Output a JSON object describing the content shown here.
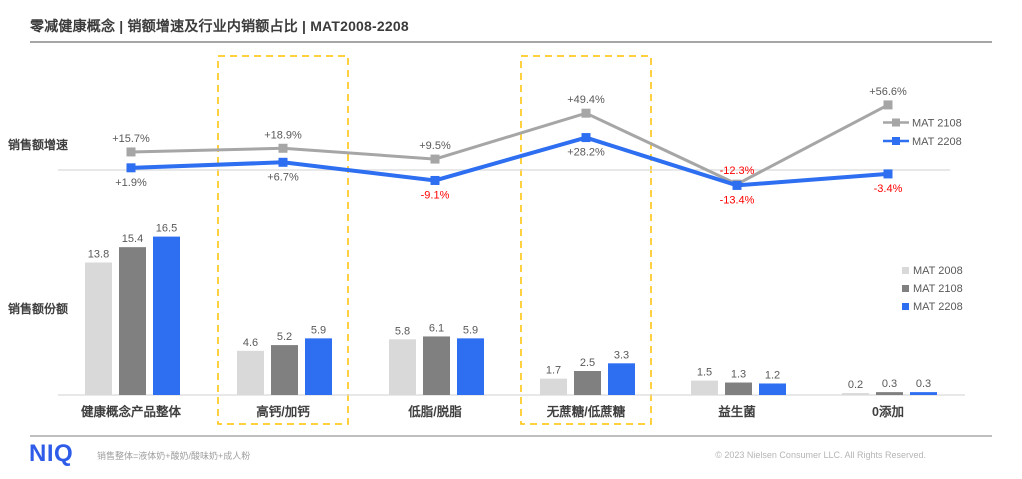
{
  "title": "零减健康概念 | 销额增速及行业内销额占比 | MAT2008-2208",
  "sections": {
    "growth_label": "销售额增速",
    "share_label": "销售额份额"
  },
  "chart_data": [
    {
      "type": "line",
      "title": "销售额增速",
      "unit": "%",
      "categories": [
        "健康概念产品整体",
        "高钙/加钙",
        "低脂/脱脂",
        "无蔗糖/低蔗糖",
        "益生菌",
        "0添加"
      ],
      "series": [
        {
          "name": "MAT 2108",
          "color": "#a6a6a6",
          "values": [
            15.7,
            18.9,
            9.5,
            49.4,
            -12.3,
            56.6
          ]
        },
        {
          "name": "MAT 2208",
          "color": "#2e6ef0",
          "values": [
            1.9,
            6.7,
            -9.1,
            28.2,
            -13.4,
            -3.4
          ]
        }
      ],
      "label_positive_color": "#595959",
      "label_negative_color": "#ff0000",
      "legend_position": "right",
      "grid": false
    },
    {
      "type": "bar",
      "title": "销售额份额",
      "categories": [
        "健康概念产品整体",
        "高钙/加钙",
        "低脂/脱脂",
        "无蔗糖/低蔗糖",
        "益生菌",
        "0添加"
      ],
      "series": [
        {
          "name": "MAT 2008",
          "color": "#d9d9d9",
          "values": [
            13.8,
            4.6,
            5.8,
            1.7,
            1.5,
            0.2
          ]
        },
        {
          "name": "MAT 2108",
          "color": "#808080",
          "values": [
            15.4,
            5.2,
            6.1,
            2.5,
            1.3,
            0.3
          ]
        },
        {
          "name": "MAT 2208",
          "color": "#2e6ef0",
          "values": [
            16.5,
            5.9,
            5.9,
            3.3,
            1.2,
            0.3
          ]
        }
      ],
      "legend_position": "right",
      "grid": false
    }
  ],
  "highlight": {
    "categories": [
      "高钙/加钙",
      "无蔗糖/低蔗糖"
    ],
    "color": "#ffc000",
    "style": "dashed"
  },
  "footer": {
    "logo": "NIQ",
    "note": "销售整体=液体奶+酸奶/酸味奶+成人粉",
    "copyright": "© 2023 Nielsen Consumer LLC. All Rights Reserved."
  }
}
